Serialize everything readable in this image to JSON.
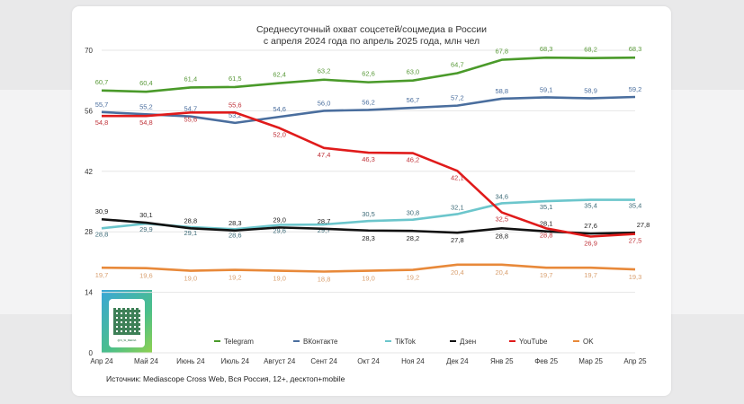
{
  "chart_data": {
    "type": "line",
    "title": "Среднесуточный охват соцсетей/соцмедиа в России",
    "subtitle": "с апреля 2024 года по апрель 2025 года, млн чел",
    "categories": [
      "Апр 24",
      "Май 24",
      "Июнь 24",
      "Июль 24",
      "Август 24",
      "Сент 24",
      "Окт 24",
      "Ноя 24",
      "Дек 24",
      "Янв 25",
      "Фев 25",
      "Мар 25",
      "Апр 25"
    ],
    "yticks": [
      0,
      14,
      28,
      42,
      56,
      70
    ],
    "ylim": [
      0,
      70
    ],
    "grid": true,
    "legend_position": "bottom",
    "series": [
      {
        "name": "Telegram",
        "color": "#4a9a2a",
        "labelColor": "#5a9a3a",
        "values": [
          60.7,
          60.4,
          61.4,
          61.5,
          62.4,
          63.2,
          62.6,
          63.0,
          64.7,
          67.8,
          68.3,
          68.2,
          68.3
        ]
      },
      {
        "name": "ВКонтакте",
        "color": "#4a6e9e",
        "labelColor": "#4a6e9e",
        "values": [
          55.7,
          55.2,
          54.7,
          53.2,
          54.6,
          56.0,
          56.2,
          56.7,
          57.2,
          58.8,
          59.1,
          58.9,
          59.2
        ]
      },
      {
        "name": "TikTok",
        "color": "#6cc6cc",
        "labelColor": "#3d6b78",
        "values": [
          28.8,
          29.9,
          29.1,
          28.6,
          29.6,
          29.7,
          30.5,
          30.8,
          32.1,
          34.6,
          35.1,
          35.4,
          35.4
        ]
      },
      {
        "name": "Дзен",
        "color": "#111111",
        "labelColor": "#222222",
        "values": [
          30.9,
          30.1,
          28.8,
          28.3,
          29.0,
          28.7,
          28.3,
          28.2,
          27.8,
          28.8,
          28.1,
          27.6,
          27.8
        ]
      },
      {
        "name": "YouTube",
        "color": "#e01b1b",
        "labelColor": "#c0333a",
        "values": [
          54.8,
          54.8,
          55.6,
          55.6,
          52.0,
          47.4,
          46.3,
          46.2,
          42.1,
          32.5,
          28.8,
          26.9,
          27.5
        ]
      },
      {
        "name": "OK",
        "color": "#e8893a",
        "labelColor": "#d9a070",
        "values": [
          19.7,
          19.6,
          19.0,
          19.2,
          19.0,
          18.8,
          19.0,
          19.2,
          20.4,
          20.4,
          19.7,
          19.7,
          19.3
        ]
      }
    ]
  },
  "source": "Источник: Mediascope Cross Web, Вся Россия, 12+, десктоп+mobile",
  "qr_caption": "@N_SI_MEDIA"
}
